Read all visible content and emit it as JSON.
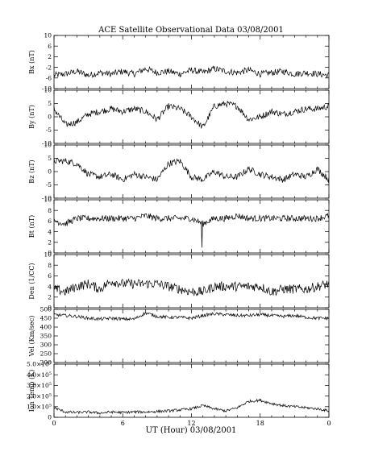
{
  "figure_title": "ACE Satellite Observational Data   03/08/2001",
  "x_axis_label": "UT (Hour)   03/08/2001",
  "x_tick_labels": [
    "0",
    "6",
    "12",
    "18",
    "0"
  ],
  "chart_data": [
    {
      "type": "line",
      "ylabel": "Bx (nT)",
      "ylim": [
        -10,
        10
      ],
      "yticks": [
        -10,
        -6,
        -2,
        2,
        6,
        10
      ],
      "yticklabels": [
        "-10",
        "-6",
        "-2",
        "2",
        "6",
        "10"
      ],
      "xlim": [
        0,
        24
      ],
      "x": [
        0,
        1,
        2,
        3,
        4,
        5,
        6,
        7,
        8,
        9,
        10,
        11,
        12,
        13,
        14,
        15,
        16,
        17,
        18,
        19,
        20,
        21,
        22,
        23,
        24
      ],
      "values": [
        -5,
        -4.5,
        -3.5,
        -5,
        -4,
        -4.5,
        -3.5,
        -4.5,
        -2.5,
        -4,
        -3.5,
        -4.5,
        -3,
        -4,
        -2.5,
        -3.5,
        -4,
        -3,
        -4.5,
        -4,
        -3.5,
        -4.5,
        -4,
        -4.5,
        -5
      ]
    },
    {
      "type": "line",
      "ylabel": "By (nT)",
      "ylim": [
        -10,
        10
      ],
      "yticks": [
        -10,
        -5,
        0,
        5,
        10
      ],
      "yticklabels": [
        "-10",
        "-5",
        "0",
        "5",
        "10"
      ],
      "xlim": [
        0,
        24
      ],
      "x": [
        0,
        1,
        2,
        3,
        4,
        5,
        6,
        7,
        8,
        9,
        10,
        11,
        12,
        13,
        14,
        15,
        16,
        17,
        18,
        19,
        20,
        21,
        22,
        23,
        24
      ],
      "values": [
        3,
        -3,
        -2,
        1,
        2,
        3,
        2,
        3,
        2,
        -1,
        4,
        3,
        0,
        -4,
        4,
        5,
        4,
        -1,
        0,
        2,
        1,
        2,
        3,
        3,
        4
      ]
    },
    {
      "type": "line",
      "ylabel": "Bz (nT)",
      "ylim": [
        -10,
        10
      ],
      "yticks": [
        -10,
        -5,
        0,
        5,
        10
      ],
      "yticklabels": [
        "-10",
        "-5",
        "0",
        "5",
        "10"
      ],
      "xlim": [
        0,
        24
      ],
      "x": [
        0,
        1,
        2,
        3,
        4,
        5,
        6,
        7,
        8,
        9,
        10,
        11,
        12,
        13,
        14,
        15,
        16,
        17,
        18,
        19,
        20,
        21,
        22,
        23,
        24
      ],
      "values": [
        4,
        4,
        3,
        -1,
        -2,
        -1,
        -3,
        -1,
        -2,
        -3,
        3,
        4,
        -2,
        -3,
        0,
        -2,
        -2,
        1,
        -1,
        -2,
        -3,
        -1,
        -2,
        1,
        -3
      ]
    },
    {
      "type": "line",
      "ylabel": "Bt (nT)",
      "ylim": [
        0,
        10
      ],
      "yticks": [
        0,
        2,
        4,
        6,
        8,
        10
      ],
      "yticklabels": [
        "0",
        "2",
        "4",
        "6",
        "8",
        "10"
      ],
      "xlim": [
        0,
        24
      ],
      "x": [
        0,
        1,
        2,
        3,
        4,
        5,
        6,
        7,
        8,
        9,
        10,
        11,
        12,
        13,
        14,
        15,
        16,
        17,
        18,
        19,
        20,
        21,
        22,
        23,
        24
      ],
      "values": [
        6,
        5.5,
        6.5,
        6.5,
        6.5,
        6.5,
        6.5,
        6.5,
        7,
        6.5,
        6.5,
        6.5,
        6.5,
        5.5,
        6.5,
        6.5,
        7,
        6.5,
        6.5,
        6.5,
        6.5,
        6.5,
        6.5,
        6.5,
        7
      ],
      "annotations": [
        {
          "x": 12.9,
          "y": 1,
          "label": ""
        }
      ]
    },
    {
      "type": "line",
      "ylabel": "Den (1/CC)",
      "ylim": [
        0,
        10
      ],
      "yticks": [
        0,
        2,
        4,
        6,
        8,
        10
      ],
      "yticklabels": [
        "0",
        "2",
        "4",
        "6",
        "8",
        "10"
      ],
      "xlim": [
        0,
        24
      ],
      "x": [
        0,
        1,
        2,
        3,
        4,
        5,
        6,
        7,
        8,
        9,
        10,
        11,
        12,
        13,
        14,
        15,
        16,
        17,
        18,
        19,
        20,
        21,
        22,
        23,
        24
      ],
      "values": [
        3.5,
        3,
        4,
        4.5,
        3.5,
        5,
        4.5,
        4.5,
        4.5,
        4.5,
        4,
        3.5,
        3,
        3,
        4,
        4,
        4,
        4,
        4,
        3,
        3.5,
        3.5,
        3.5,
        4,
        4.5
      ]
    },
    {
      "type": "line",
      "ylabel": "Vel (Km/sec)",
      "ylim": [
        200,
        500
      ],
      "yticks": [
        200,
        250,
        300,
        350,
        400,
        450,
        500
      ],
      "yticklabels": [
        "200",
        "250",
        "300",
        "350",
        "400",
        "450",
        "500"
      ],
      "xlim": [
        0,
        24
      ],
      "x": [
        0,
        1,
        2,
        3,
        4,
        5,
        6,
        7,
        8,
        9,
        10,
        11,
        12,
        13,
        14,
        15,
        16,
        17,
        18,
        19,
        20,
        21,
        22,
        23,
        24
      ],
      "values": [
        470,
        465,
        460,
        450,
        445,
        450,
        445,
        445,
        480,
        460,
        455,
        455,
        450,
        465,
        475,
        470,
        465,
        465,
        470,
        465,
        460,
        465,
        455,
        450,
        450
      ]
    },
    {
      "type": "line",
      "ylabel": "Ion Temp (K)",
      "ylim": [
        0,
        500000
      ],
      "yticks": [
        0,
        100000,
        200000,
        300000,
        400000,
        500000
      ],
      "yticklabels": [
        "0",
        "1.0×10",
        "2.0×10",
        "3.0×10",
        "4.0×10",
        "5.0×10"
      ],
      "ytick_exponent": "5",
      "xlim": [
        0,
        24
      ],
      "x": [
        0,
        1,
        2,
        3,
        4,
        5,
        6,
        7,
        8,
        9,
        10,
        11,
        12,
        13,
        14,
        15,
        16,
        17,
        18,
        19,
        20,
        21,
        22,
        23,
        24
      ],
      "values": [
        90000,
        50000,
        45000,
        50000,
        40000,
        50000,
        45000,
        50000,
        50000,
        55000,
        60000,
        70000,
        80000,
        110000,
        80000,
        60000,
        90000,
        150000,
        160000,
        130000,
        110000,
        100000,
        90000,
        80000,
        60000
      ]
    }
  ]
}
